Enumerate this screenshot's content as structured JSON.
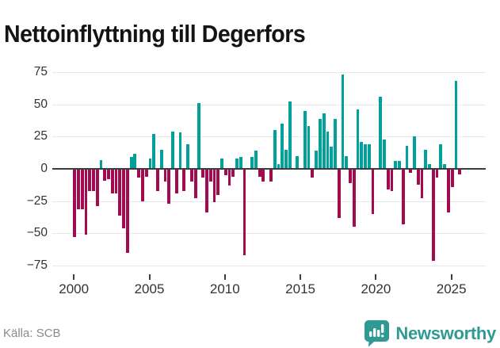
{
  "title": "Nettoinflyttning till Degerfors",
  "source": "Källa: SCB",
  "brand": {
    "name": "Newsworthy",
    "icon": "bar-chart-pin-icon"
  },
  "colors": {
    "positive": "#00a19b",
    "negative": "#a30b50",
    "grid": "#e8e8e8",
    "axis": "#3d3d3d",
    "label_text": "#333333",
    "muted_text": "#8b8b8b",
    "brand_teal": "#2f9a93"
  },
  "chart_data": {
    "type": "bar",
    "title": "Nettoinflyttning till Degerfors",
    "x_unit": "quarter",
    "start": "2000Q1",
    "end": "2025Q3",
    "values": [
      -53,
      -31,
      -31,
      -51,
      -17,
      -17,
      -29,
      7,
      -9,
      -8,
      -19,
      -19,
      -36,
      -46,
      -65,
      9,
      12,
      -7,
      -25,
      -6,
      8,
      27,
      -17,
      15,
      -10,
      -27,
      29,
      -19,
      28,
      -17,
      19,
      -10,
      -23,
      51,
      -7,
      -34,
      -10,
      -26,
      -20,
      8,
      -5,
      -13,
      -6,
      8,
      9,
      -67,
      0,
      9,
      14,
      -6,
      -10,
      0,
      -10,
      30,
      4,
      35,
      15,
      52,
      0,
      10,
      0,
      45,
      33,
      -7,
      14,
      39,
      43,
      29,
      17,
      39,
      -38,
      73,
      10,
      -11,
      -45,
      46,
      21,
      19,
      19,
      -35,
      0,
      56,
      23,
      -16,
      -17,
      6,
      6,
      -43,
      18,
      -3,
      25,
      -12,
      -23,
      15,
      4,
      -71,
      -7,
      19,
      4,
      -34,
      -14,
      68,
      -4
    ],
    "y_ticks": [
      75,
      50,
      25,
      0,
      -25,
      -50,
      -75
    ],
    "y_tick_labels": [
      "75",
      "50",
      "25",
      "0",
      "−25",
      "−50",
      "−75"
    ],
    "x_ticks": [
      2000,
      2005,
      2010,
      2015,
      2020,
      2025
    ],
    "x_tick_labels": [
      "2000",
      "2005",
      "2010",
      "2015",
      "2020",
      "2025"
    ],
    "ylim": [
      -85,
      85
    ],
    "grid": "horizontal",
    "legend": "none"
  }
}
